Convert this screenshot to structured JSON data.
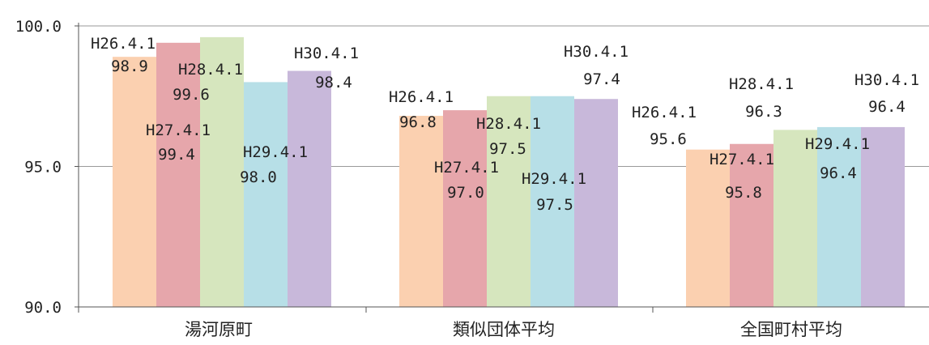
{
  "chart_data": {
    "type": "bar",
    "categories": [
      "湯河原町",
      "類似団体平均",
      "全国町村平均"
    ],
    "series": [
      {
        "name": "H26.4.1",
        "values": [
          98.9,
          96.8,
          95.6
        ]
      },
      {
        "name": "H27.4.1",
        "values": [
          99.4,
          97.0,
          95.8
        ]
      },
      {
        "name": "H28.4.1",
        "values": [
          99.6,
          97.5,
          96.3
        ]
      },
      {
        "name": "H29.4.1",
        "values": [
          98.0,
          97.5,
          96.4
        ]
      },
      {
        "name": "H30.4.1",
        "values": [
          98.4,
          97.4,
          96.4
        ]
      }
    ],
    "value_labels": [
      [
        "98.9",
        "96.8",
        "95.6"
      ],
      [
        "99.4",
        "97.0",
        "95.8"
      ],
      [
        "99.6",
        "97.5",
        "96.3"
      ],
      [
        "98.0",
        "97.5",
        "96.4"
      ],
      [
        "98.4",
        "97.4",
        "96.4"
      ]
    ],
    "y_ticks": [
      "100.0",
      "95.0",
      "90.0"
    ],
    "ylim": [
      90,
      100
    ],
    "grid": true,
    "legend": "none (series names shown as data labels)",
    "title": "",
    "xlabel": "",
    "ylabel": "",
    "colors": [
      "#fbd0b0",
      "#e6a6ab",
      "#d6e6be",
      "#b7dfe7",
      "#c8b8da"
    ]
  }
}
